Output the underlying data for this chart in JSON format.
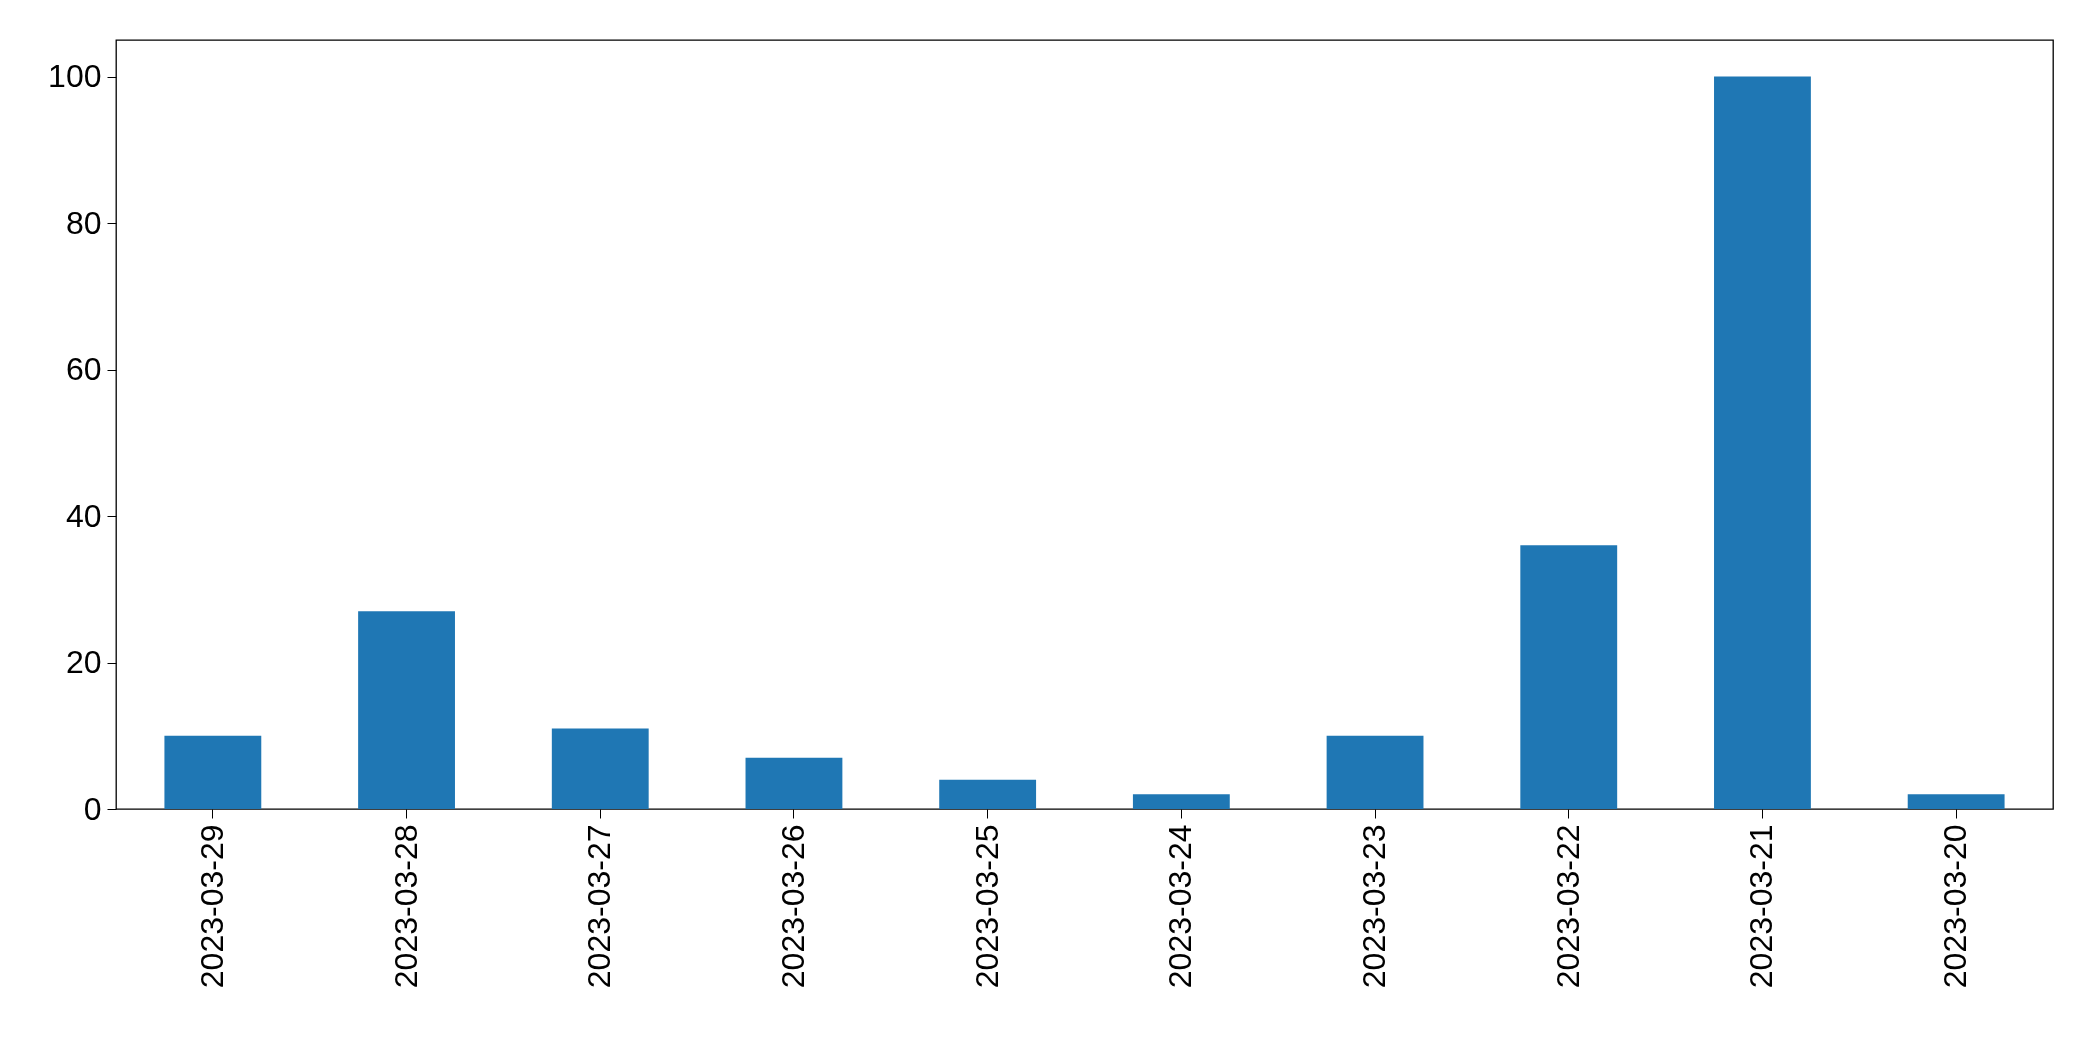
{
  "chart_data": {
    "type": "bar",
    "categories": [
      "2023-03-29",
      "2023-03-28",
      "2023-03-27",
      "2023-03-26",
      "2023-03-25",
      "2023-03-24",
      "2023-03-23",
      "2023-03-22",
      "2023-03-21",
      "2023-03-20"
    ],
    "values": [
      10,
      27,
      11,
      7,
      4,
      2,
      10,
      36,
      100,
      2
    ],
    "color": "#1f77b4",
    "ylim": [
      0,
      105
    ],
    "yticks": [
      0,
      20,
      40,
      60,
      80,
      100
    ],
    "grid": false
  }
}
